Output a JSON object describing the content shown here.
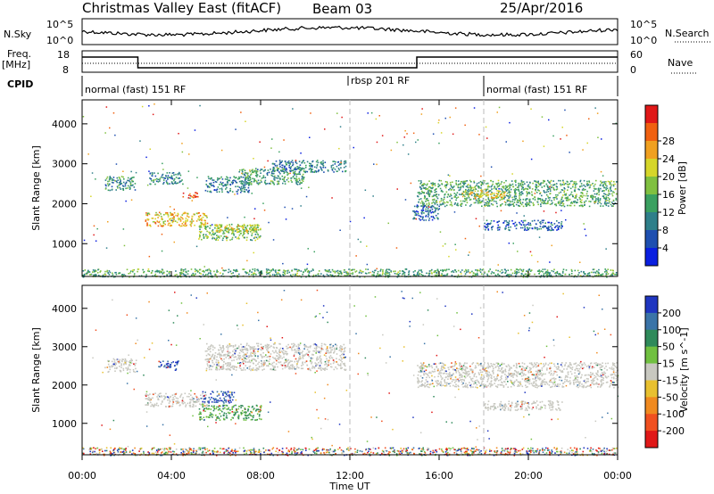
{
  "header": {
    "station": "Christmas Valley East (fitACF)",
    "beam": "Beam 03",
    "date": "25/Apr/2016"
  },
  "strip_panels": {
    "nsky_label": "N.Sky",
    "nsky_ticks": [
      "10^5",
      "10^0"
    ],
    "nsearch_label": "N.Search",
    "nsearch_ticks": [
      "10^5",
      "10^0"
    ],
    "freq_label_line1": "Freq.",
    "freq_label_line2": "[MHz]",
    "freq_ticks": [
      "18",
      "8"
    ],
    "nave_label": "Nave",
    "nave_ticks": [
      "60",
      "0"
    ],
    "cpid_label": "CPID",
    "cpid_segments": [
      {
        "label": "normal (fast) 151 RF",
        "start_hour": 0,
        "end_hour": 12
      },
      {
        "label": "rbsp 201 RF",
        "start_hour": 12,
        "end_hour": 18
      },
      {
        "label": "normal (fast) 151 RF",
        "start_hour": 18,
        "end_hour": 24
      }
    ],
    "freq_steps": [
      {
        "start_hour": 0,
        "end_hour": 2.5,
        "value": 16.5
      },
      {
        "start_hour": 2.5,
        "end_hour": 15,
        "value": 10.5
      },
      {
        "start_hour": 15,
        "end_hour": 24,
        "value": 16.5
      }
    ]
  },
  "chart_data": [
    {
      "type": "heatmap",
      "quantity": "Power",
      "xlabel": "Time UT",
      "ylabel": "Slant Range [km]",
      "xlim": [
        0,
        24
      ],
      "ylim": [
        180,
        4600
      ],
      "x_ticks": [
        "00:00",
        "04:00",
        "08:00",
        "12:00",
        "16:00",
        "20:00",
        "00:00"
      ],
      "y_ticks": [
        "1000",
        "2000",
        "3000",
        "4000"
      ],
      "colorbar_label": "Power [dB]",
      "colorbar_ticks": [
        "4",
        "8",
        "12",
        "16",
        "20",
        "24",
        "28"
      ],
      "colorbar_colors": [
        "#0a1fe0",
        "#1e4fb0",
        "#2f7f8a",
        "#3aa060",
        "#80c040",
        "#d6d62a",
        "#f0a020",
        "#f06010",
        "#e01818"
      ],
      "colorbar_range": [
        0,
        30
      ],
      "regions": [
        {
          "t0": 1.0,
          "t1": 2.4,
          "r0": 2350,
          "r1": 2700,
          "level": 10
        },
        {
          "t0": 3.0,
          "t1": 4.5,
          "r0": 2500,
          "r1": 2800,
          "level": 9
        },
        {
          "t0": 2.8,
          "t1": 5.6,
          "r0": 1450,
          "r1": 1800,
          "level": 20
        },
        {
          "t0": 4.5,
          "t1": 5.2,
          "r0": 2150,
          "r1": 2300,
          "level": 26
        },
        {
          "t0": 5.2,
          "t1": 8.0,
          "r0": 1100,
          "r1": 1500,
          "level": 14
        },
        {
          "t0": 6.0,
          "t1": 7.8,
          "r0": 1300,
          "r1": 1500,
          "level": 18
        },
        {
          "t0": 5.5,
          "t1": 7.5,
          "r0": 2300,
          "r1": 2700,
          "level": 8
        },
        {
          "t0": 7.0,
          "t1": 10.0,
          "r0": 2500,
          "r1": 2900,
          "level": 11
        },
        {
          "t0": 8.5,
          "t1": 11.8,
          "r0": 2800,
          "r1": 3100,
          "level": 8
        },
        {
          "t0": 15.0,
          "t1": 24.0,
          "r0": 1950,
          "r1": 2600,
          "level": 12
        },
        {
          "t0": 17.0,
          "t1": 19.0,
          "r0": 2150,
          "r1": 2350,
          "level": 20
        },
        {
          "t0": 18.0,
          "t1": 21.5,
          "r0": 1350,
          "r1": 1600,
          "level": 6
        },
        {
          "t0": 14.8,
          "t1": 16.0,
          "r0": 1600,
          "r1": 2000,
          "level": 6
        },
        {
          "t0": 0.0,
          "t1": 24.0,
          "r0": 180,
          "r1": 380,
          "level": 12
        }
      ]
    },
    {
      "type": "heatmap",
      "quantity": "Velocity",
      "xlabel": "Time UT",
      "ylabel": "Slant Range [km]",
      "xlim": [
        0,
        24
      ],
      "ylim": [
        180,
        4600
      ],
      "x_ticks": [
        "00:00",
        "04:00",
        "08:00",
        "12:00",
        "16:00",
        "20:00",
        "00:00"
      ],
      "y_ticks": [
        "1000",
        "2000",
        "3000",
        "4000"
      ],
      "colorbar_label": "Velocity [m s^-1]",
      "colorbar_ticks": [
        "200",
        "100",
        "50",
        "15",
        "-15",
        "-50",
        "-100",
        "-200"
      ],
      "colorbar_colors": [
        "#1f36c0",
        "#3a74a8",
        "#2f8a5a",
        "#70c040",
        "#c8c8c0",
        "#e8c030",
        "#f08a20",
        "#f05020",
        "#e01818"
      ],
      "regions": [
        {
          "t0": 1.0,
          "t1": 2.4,
          "r0": 2350,
          "r1": 2700,
          "level": "grey"
        },
        {
          "t0": 3.4,
          "t1": 4.3,
          "r0": 2400,
          "r1": 2650,
          "level": "blue"
        },
        {
          "t0": 2.8,
          "t1": 5.6,
          "r0": 1450,
          "r1": 1800,
          "level": "grey"
        },
        {
          "t0": 5.3,
          "t1": 6.8,
          "r0": 1550,
          "r1": 1850,
          "level": "blue"
        },
        {
          "t0": 5.2,
          "t1": 8.0,
          "r0": 1100,
          "r1": 1500,
          "level": "green"
        },
        {
          "t0": 5.5,
          "t1": 11.8,
          "r0": 2400,
          "r1": 3100,
          "level": "grey"
        },
        {
          "t0": 15.0,
          "t1": 24.0,
          "r0": 1950,
          "r1": 2600,
          "level": "grey"
        },
        {
          "t0": 18.0,
          "t1": 21.5,
          "r0": 1350,
          "r1": 1600,
          "level": "grey"
        },
        {
          "t0": 0.0,
          "t1": 24.0,
          "r0": 180,
          "r1": 380,
          "level": "mixed"
        }
      ]
    }
  ]
}
